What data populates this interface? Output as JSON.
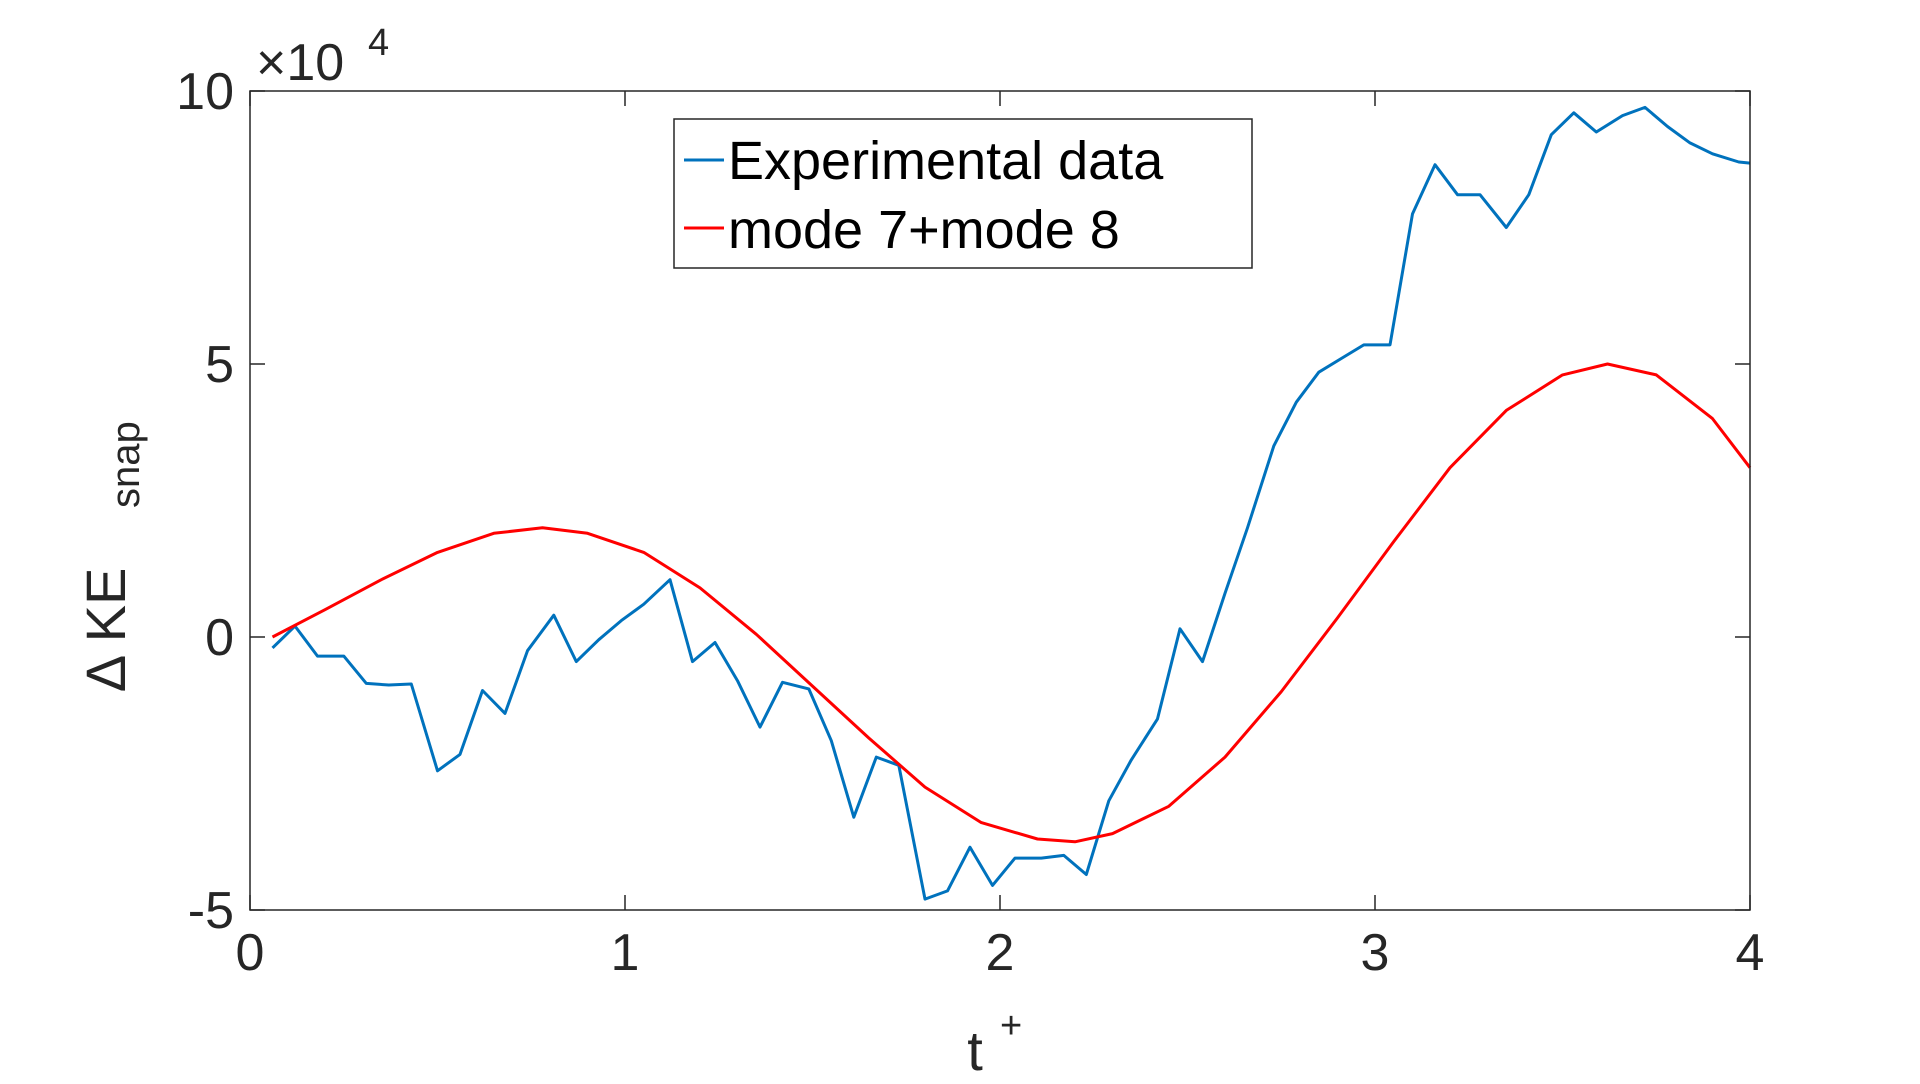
{
  "chart_data": {
    "type": "line",
    "xlabel": "t",
    "xlabel_sup": "+",
    "ylabel": "Δ KE",
    "ylabel_sub": "snap",
    "xlim": [
      0,
      4
    ],
    "ylim": [
      -50000,
      100000
    ],
    "xticks": [
      0,
      1,
      2,
      3,
      4
    ],
    "xtick_labels": [
      "0",
      "1",
      "2",
      "3",
      "4"
    ],
    "yticks": [
      -50000,
      0,
      50000,
      100000
    ],
    "ytick_labels": [
      "-5",
      "0",
      "5",
      "10"
    ],
    "y_exponent_base": "×10",
    "y_exponent_power": "4",
    "grid": false,
    "legend_placement": "top-center",
    "series": [
      {
        "name": "Experimental data",
        "color": "#0072BD",
        "x": [
          0.06,
          0.12,
          0.18,
          0.25,
          0.31,
          0.37,
          0.43,
          0.5,
          0.56,
          0.62,
          0.68,
          0.74,
          0.81,
          0.87,
          0.93,
          0.99,
          1.05,
          1.12,
          1.18,
          1.24,
          1.3,
          1.36,
          1.42,
          1.49,
          1.55,
          1.61,
          1.67,
          1.73,
          1.8,
          1.86,
          1.92,
          1.98,
          2.04,
          2.11,
          2.17,
          2.23,
          2.29,
          2.35,
          2.42,
          2.48,
          2.54,
          2.6,
          2.66,
          2.73,
          2.79,
          2.85,
          2.91,
          2.97,
          3.04,
          3.1,
          3.16,
          3.22,
          3.28,
          3.35,
          3.41,
          3.47,
          3.53,
          3.59,
          3.66,
          3.72,
          3.78,
          3.84,
          3.9,
          3.97,
          4.0
        ],
        "y": [
          -2000,
          2000,
          -3500,
          -3500,
          -8500,
          -8800,
          -8600,
          -24500,
          -21500,
          -9800,
          -14000,
          -2500,
          4000,
          -4500,
          -500,
          3000,
          6000,
          10500,
          -4500,
          -1000,
          -8000,
          -16500,
          -8300,
          -9500,
          -19000,
          -33000,
          -22000,
          -23500,
          -48000,
          -46500,
          -38500,
          -45500,
          -40500,
          -40500,
          -40000,
          -43500,
          -30000,
          -22500,
          -15000,
          1500,
          -4500,
          8000,
          20000,
          35000,
          43000,
          48500,
          51000,
          53500,
          53500,
          77500,
          86500,
          81000,
          81000,
          75000,
          81000,
          92000,
          96000,
          92500,
          95500,
          97000,
          93500,
          90500,
          88500,
          87000,
          86800
        ]
      },
      {
        "name": "mode 7+mode 8",
        "color": "#FF0000",
        "x": [
          0.06,
          0.2,
          0.35,
          0.5,
          0.65,
          0.78,
          0.9,
          1.05,
          1.2,
          1.35,
          1.5,
          1.65,
          1.8,
          1.95,
          2.1,
          2.2,
          2.3,
          2.45,
          2.6,
          2.75,
          2.9,
          3.05,
          3.2,
          3.35,
          3.5,
          3.62,
          3.75,
          3.9,
          4.0
        ],
        "y": [
          0,
          5000,
          10500,
          15500,
          19000,
          20000,
          19000,
          15500,
          9000,
          500,
          -9000,
          -18500,
          -27500,
          -34000,
          -37000,
          -37500,
          -36000,
          -31000,
          -22000,
          -10000,
          3500,
          17500,
          31000,
          41500,
          48000,
          50000,
          48000,
          40000,
          31000
        ]
      }
    ]
  }
}
